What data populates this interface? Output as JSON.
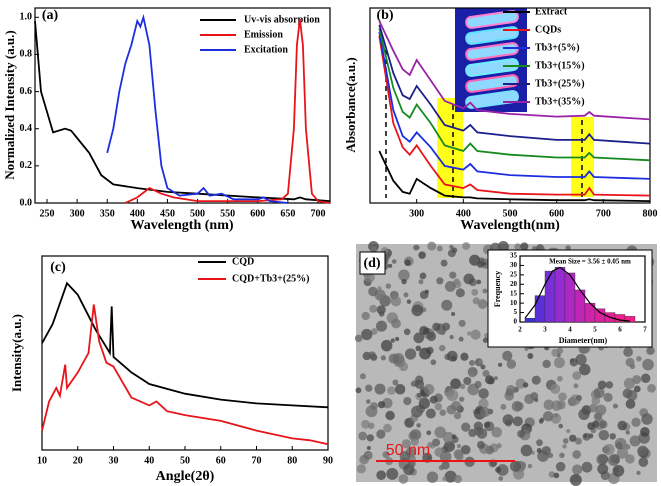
{
  "chart_data": [
    {
      "type": "line",
      "label": "(a)",
      "xlabel": "Wavelength (nm)",
      "ylabel": "Normalized Intensity (a.u.)",
      "xlim": [
        230,
        720
      ],
      "ylim": [
        0,
        1.05
      ],
      "xticks": [
        250,
        300,
        350,
        400,
        450,
        500,
        550,
        600,
        650,
        700
      ],
      "yticks": [
        {
          "value": 0,
          "label": "0.0"
        },
        {
          "value": 0.2,
          "label": "0.2"
        },
        {
          "value": 0.4,
          "label": "0.4"
        },
        {
          "value": 0.6,
          "label": "0.6"
        },
        {
          "value": 0.8,
          "label": "0.8"
        },
        {
          "value": 1,
          "label": "1.0"
        }
      ],
      "series": [
        {
          "name": "Uv-vis absorption",
          "color": "#000000",
          "x": [
            230,
            240,
            260,
            280,
            290,
            300,
            320,
            340,
            360,
            400,
            450,
            500,
            600,
            660,
            670,
            680,
            720
          ],
          "values": [
            0.98,
            0.6,
            0.38,
            0.4,
            0.39,
            0.35,
            0.27,
            0.15,
            0.1,
            0.08,
            0.06,
            0.05,
            0.03,
            0.02,
            0.03,
            0.02,
            0.01
          ]
        },
        {
          "name": "Emission",
          "color": "#e8141a",
          "x": [
            380,
            400,
            420,
            440,
            460,
            500,
            600,
            640,
            650,
            660,
            665,
            670,
            675,
            680,
            690,
            700,
            720
          ],
          "values": [
            0,
            0.03,
            0.08,
            0.05,
            0.03,
            0.01,
            0.01,
            0.02,
            0.05,
            0.4,
            0.85,
            0.99,
            0.85,
            0.4,
            0.05,
            0.01,
            0
          ]
        },
        {
          "name": "Excitation",
          "color": "#1d2ee0",
          "x": [
            350,
            360,
            370,
            380,
            390,
            400,
            405,
            410,
            420,
            430,
            440,
            450,
            470,
            500,
            510,
            520,
            540,
            560,
            600,
            610,
            620,
            650
          ],
          "values": [
            0.27,
            0.4,
            0.6,
            0.75,
            0.85,
            0.98,
            0.95,
            1,
            0.85,
            0.5,
            0.2,
            0.08,
            0.04,
            0.05,
            0.08,
            0.04,
            0.05,
            0.02,
            0.02,
            0.03,
            0.01,
            0
          ]
        }
      ]
    },
    {
      "type": "line",
      "label": "(b)",
      "xlabel": "Wavelength(nm)",
      "ylabel": "Absorbance(a.u.)",
      "xlim": [
        200,
        800
      ],
      "ylim": [
        0,
        10.5
      ],
      "xticks": [
        300,
        400,
        500,
        600,
        700,
        800
      ],
      "series": [
        {
          "name": "Extract",
          "color": "#000000",
          "x": [
            220,
            250,
            270,
            285,
            300,
            330,
            360,
            400,
            415,
            430,
            500,
            600,
            660,
            670,
            680,
            800
          ],
          "values": [
            2.8,
            1.2,
            0.6,
            0.5,
            1.3,
            0.8,
            0.4,
            0.3,
            0.3,
            0.25,
            0.2,
            0.15,
            0.15,
            0.2,
            0.15,
            0.1
          ]
        },
        {
          "name": "CQDs",
          "color": "#e8141a",
          "x": [
            220,
            250,
            270,
            285,
            300,
            330,
            360,
            400,
            415,
            430,
            500,
            600,
            660,
            670,
            680,
            800
          ],
          "values": [
            9.0,
            4.3,
            3.0,
            2.6,
            3.1,
            2.0,
            1.0,
            0.8,
            1.0,
            0.7,
            0.5,
            0.45,
            0.45,
            0.8,
            0.45,
            0.4
          ]
        },
        {
          "name": "Tb3+(5%)",
          "color": "#1d2ee0",
          "x": [
            220,
            250,
            270,
            285,
            300,
            330,
            360,
            400,
            415,
            430,
            500,
            600,
            660,
            670,
            680,
            800
          ],
          "values": [
            9.2,
            5.0,
            3.6,
            3.3,
            3.8,
            3.0,
            2.0,
            1.8,
            2.1,
            1.7,
            1.5,
            1.4,
            1.4,
            1.7,
            1.4,
            1.3
          ]
        },
        {
          "name": "Tb3+(15%)",
          "color": "#168a1e",
          "x": [
            220,
            250,
            270,
            285,
            300,
            330,
            360,
            400,
            415,
            430,
            500,
            600,
            660,
            670,
            680,
            800
          ],
          "values": [
            9.4,
            6.2,
            4.9,
            4.6,
            5.3,
            4.3,
            3.1,
            2.8,
            3.2,
            2.8,
            2.6,
            2.45,
            2.45,
            2.7,
            2.45,
            2.3
          ]
        },
        {
          "name": "Tb3+(25%)",
          "color": "#1a1f8c",
          "x": [
            220,
            250,
            270,
            285,
            300,
            330,
            360,
            400,
            415,
            430,
            500,
            600,
            660,
            670,
            680,
            800
          ],
          "values": [
            9.6,
            7.0,
            5.8,
            5.6,
            6.3,
            5.3,
            4.2,
            3.9,
            4.2,
            3.8,
            3.6,
            3.4,
            3.4,
            3.7,
            3.4,
            3.2
          ]
        },
        {
          "name": "Tb3+(35%)",
          "color": "#9a22a8",
          "x": [
            220,
            250,
            270,
            285,
            300,
            330,
            360,
            400,
            415,
            430,
            500,
            600,
            660,
            670,
            680,
            800
          ],
          "values": [
            9.8,
            8.2,
            7.2,
            6.9,
            7.7,
            6.6,
            5.5,
            5.1,
            5.4,
            5.0,
            4.8,
            4.65,
            4.7,
            4.9,
            4.7,
            4.5
          ]
        }
      ]
    },
    {
      "type": "line",
      "label": "(c)",
      "xlabel": "Angle(2θ)",
      "ylabel": "Intensity(a.u.)",
      "xlim": [
        10,
        90
      ],
      "ylim": [
        0,
        10
      ],
      "xticks": [
        10,
        20,
        30,
        40,
        50,
        60,
        70,
        80,
        90
      ],
      "series": [
        {
          "name": "CQD",
          "color": "#000000",
          "x": [
            10,
            13,
            17,
            20,
            25,
            29,
            29.5,
            30,
            35,
            40,
            50,
            60,
            70,
            80,
            90
          ],
          "values": [
            5.5,
            6.5,
            8.6,
            8.0,
            6.2,
            5.0,
            7.4,
            4.8,
            4.0,
            3.4,
            2.9,
            2.6,
            2.4,
            2.3,
            2.2
          ]
        },
        {
          "name": "CQD+Tb3+(25%)",
          "color": "#e8141a",
          "x": [
            10,
            12,
            14,
            15,
            16.5,
            17,
            20,
            23,
            24.5,
            26,
            28,
            30,
            35,
            40,
            42,
            45,
            50,
            60,
            70,
            80,
            85,
            90
          ],
          "values": [
            1.0,
            2.5,
            3.2,
            2.8,
            4.4,
            3.2,
            4.0,
            5.0,
            7.5,
            5.6,
            4.5,
            4.3,
            2.7,
            2.3,
            2.5,
            2.0,
            1.8,
            1.5,
            1.0,
            0.6,
            0.5,
            0.3
          ]
        }
      ]
    },
    {
      "type": "histogram",
      "label": "(d)",
      "title": "Mean Size = 3.56 ± 0.05 nm",
      "xlabel": "Diameter(nm)",
      "ylabel": "Frequency",
      "scale_bar": "50 nm",
      "xlim": [
        2,
        7
      ],
      "ylim": [
        0,
        35
      ],
      "xticks": [
        2,
        3,
        4,
        5,
        6,
        7
      ],
      "yticks": [
        0,
        5,
        10,
        15,
        20,
        25,
        30,
        35
      ],
      "bins": [
        2.2,
        2.6,
        3.0,
        3.4,
        3.8,
        4.2,
        4.6,
        5.0,
        5.4,
        5.8,
        6.2,
        6.6
      ],
      "values": [
        2,
        14,
        27,
        29,
        26,
        17,
        10,
        7,
        5,
        4,
        3
      ],
      "colors": [
        "#3a2fd8",
        "#5a2fd8",
        "#7a2ed8",
        "#952bd0",
        "#ad28c4",
        "#c025b8",
        "#d023ac",
        "#dc21a0",
        "#e62096",
        "#ee1f8e",
        "#f41e88"
      ],
      "fit": {
        "x": [
          2.2,
          2.6,
          3.0,
          3.3,
          3.6,
          4.0,
          4.4,
          4.8,
          5.2,
          5.6,
          6.0,
          6.4
        ],
        "values": [
          2,
          9,
          20,
          27,
          29,
          25,
          17,
          10,
          5,
          2.5,
          1,
          0.5
        ]
      }
    }
  ]
}
